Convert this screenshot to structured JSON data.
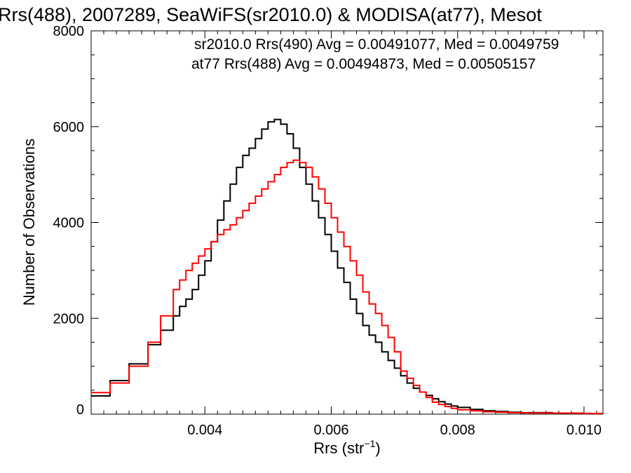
{
  "chart_data": {
    "type": "line",
    "title": "Rrs(488), 2007289, SeaWiFS(sr2010.0) & MODISA(at77), Mesot",
    "xlabel": "Rrs (str",
    "xlabel_sup": "−1",
    "xlabel_close": ")",
    "ylabel": "Number of Observations",
    "xlim": [
      0.0022,
      0.0103
    ],
    "ylim": [
      0,
      8000
    ],
    "x_ticks": [
      0.004,
      0.006,
      0.008,
      0.01
    ],
    "x_tick_labels": [
      "0.004",
      "0.006",
      "0.008",
      "0.010"
    ],
    "y_ticks": [
      0,
      2000,
      4000,
      6000,
      8000
    ],
    "y_tick_labels": [
      "0",
      "2000",
      "4000",
      "6000",
      "8000"
    ],
    "grid": false,
    "legend_position": "top-right",
    "series": [
      {
        "name": "sr2010.0 Rrs(490) Avg = 0.00491077, Med = 0.0049759",
        "color": "#000000",
        "x": [
          0.0022,
          0.0025,
          0.0028,
          0.0031,
          0.0033,
          0.0035,
          0.0036,
          0.0037,
          0.0038,
          0.0039,
          0.004,
          0.0041,
          0.0042,
          0.0043,
          0.0044,
          0.0045,
          0.0046,
          0.0047,
          0.0048,
          0.0049,
          0.005,
          0.0051,
          0.0052,
          0.0053,
          0.0054,
          0.0055,
          0.0056,
          0.0057,
          0.0058,
          0.0059,
          0.006,
          0.0061,
          0.0062,
          0.0063,
          0.0064,
          0.0065,
          0.0066,
          0.0067,
          0.0068,
          0.0069,
          0.007,
          0.0071,
          0.0072,
          0.0073,
          0.0074,
          0.0075,
          0.0076,
          0.0077,
          0.0078,
          0.0079,
          0.008,
          0.0082,
          0.0084,
          0.0086,
          0.0088,
          0.009,
          0.0095,
          0.01,
          0.0103
        ],
        "values": [
          380,
          700,
          1050,
          1450,
          1750,
          2050,
          2250,
          2400,
          2600,
          2900,
          3200,
          3600,
          4050,
          4450,
          4800,
          5150,
          5400,
          5550,
          5750,
          5950,
          6100,
          6150,
          6050,
          5850,
          5550,
          5150,
          4800,
          4450,
          4100,
          3750,
          3400,
          3050,
          2750,
          2400,
          2100,
          1850,
          1650,
          1500,
          1300,
          1120,
          960,
          800,
          650,
          540,
          460,
          390,
          320,
          260,
          210,
          170,
          140,
          100,
          70,
          55,
          40,
          30,
          20,
          10,
          5
        ]
      },
      {
        "name": "at77 Rrs(488) Avg = 0.00494873, Med = 0.00505157",
        "color": "#ff0000",
        "x": [
          0.0022,
          0.0025,
          0.0028,
          0.0031,
          0.0033,
          0.0035,
          0.0036,
          0.0037,
          0.0038,
          0.0039,
          0.004,
          0.0041,
          0.0042,
          0.0043,
          0.0044,
          0.0045,
          0.0046,
          0.0047,
          0.0048,
          0.0049,
          0.005,
          0.0051,
          0.0052,
          0.0053,
          0.0054,
          0.0055,
          0.0056,
          0.0057,
          0.0058,
          0.0059,
          0.006,
          0.0061,
          0.0062,
          0.0063,
          0.0064,
          0.0065,
          0.0066,
          0.0067,
          0.0068,
          0.0069,
          0.007,
          0.0071,
          0.0072,
          0.0073,
          0.0074,
          0.0075,
          0.0076,
          0.0077,
          0.0078,
          0.0079,
          0.008,
          0.0082,
          0.0084,
          0.0086,
          0.0088,
          0.009,
          0.0095,
          0.01,
          0.0103
        ],
        "values": [
          450,
          650,
          1000,
          1500,
          2050,
          2600,
          2800,
          3000,
          3150,
          3300,
          3450,
          3600,
          3750,
          3850,
          3950,
          4100,
          4250,
          4400,
          4550,
          4700,
          4850,
          5000,
          5150,
          5250,
          5300,
          5250,
          5150,
          4950,
          4700,
          4400,
          4100,
          3800,
          3500,
          3200,
          2900,
          2550,
          2300,
          2100,
          1850,
          1600,
          1300,
          900,
          750,
          600,
          460,
          350,
          250,
          200,
          160,
          120,
          90,
          70,
          50,
          40,
          30,
          25,
          20,
          15,
          10
        ]
      }
    ]
  }
}
